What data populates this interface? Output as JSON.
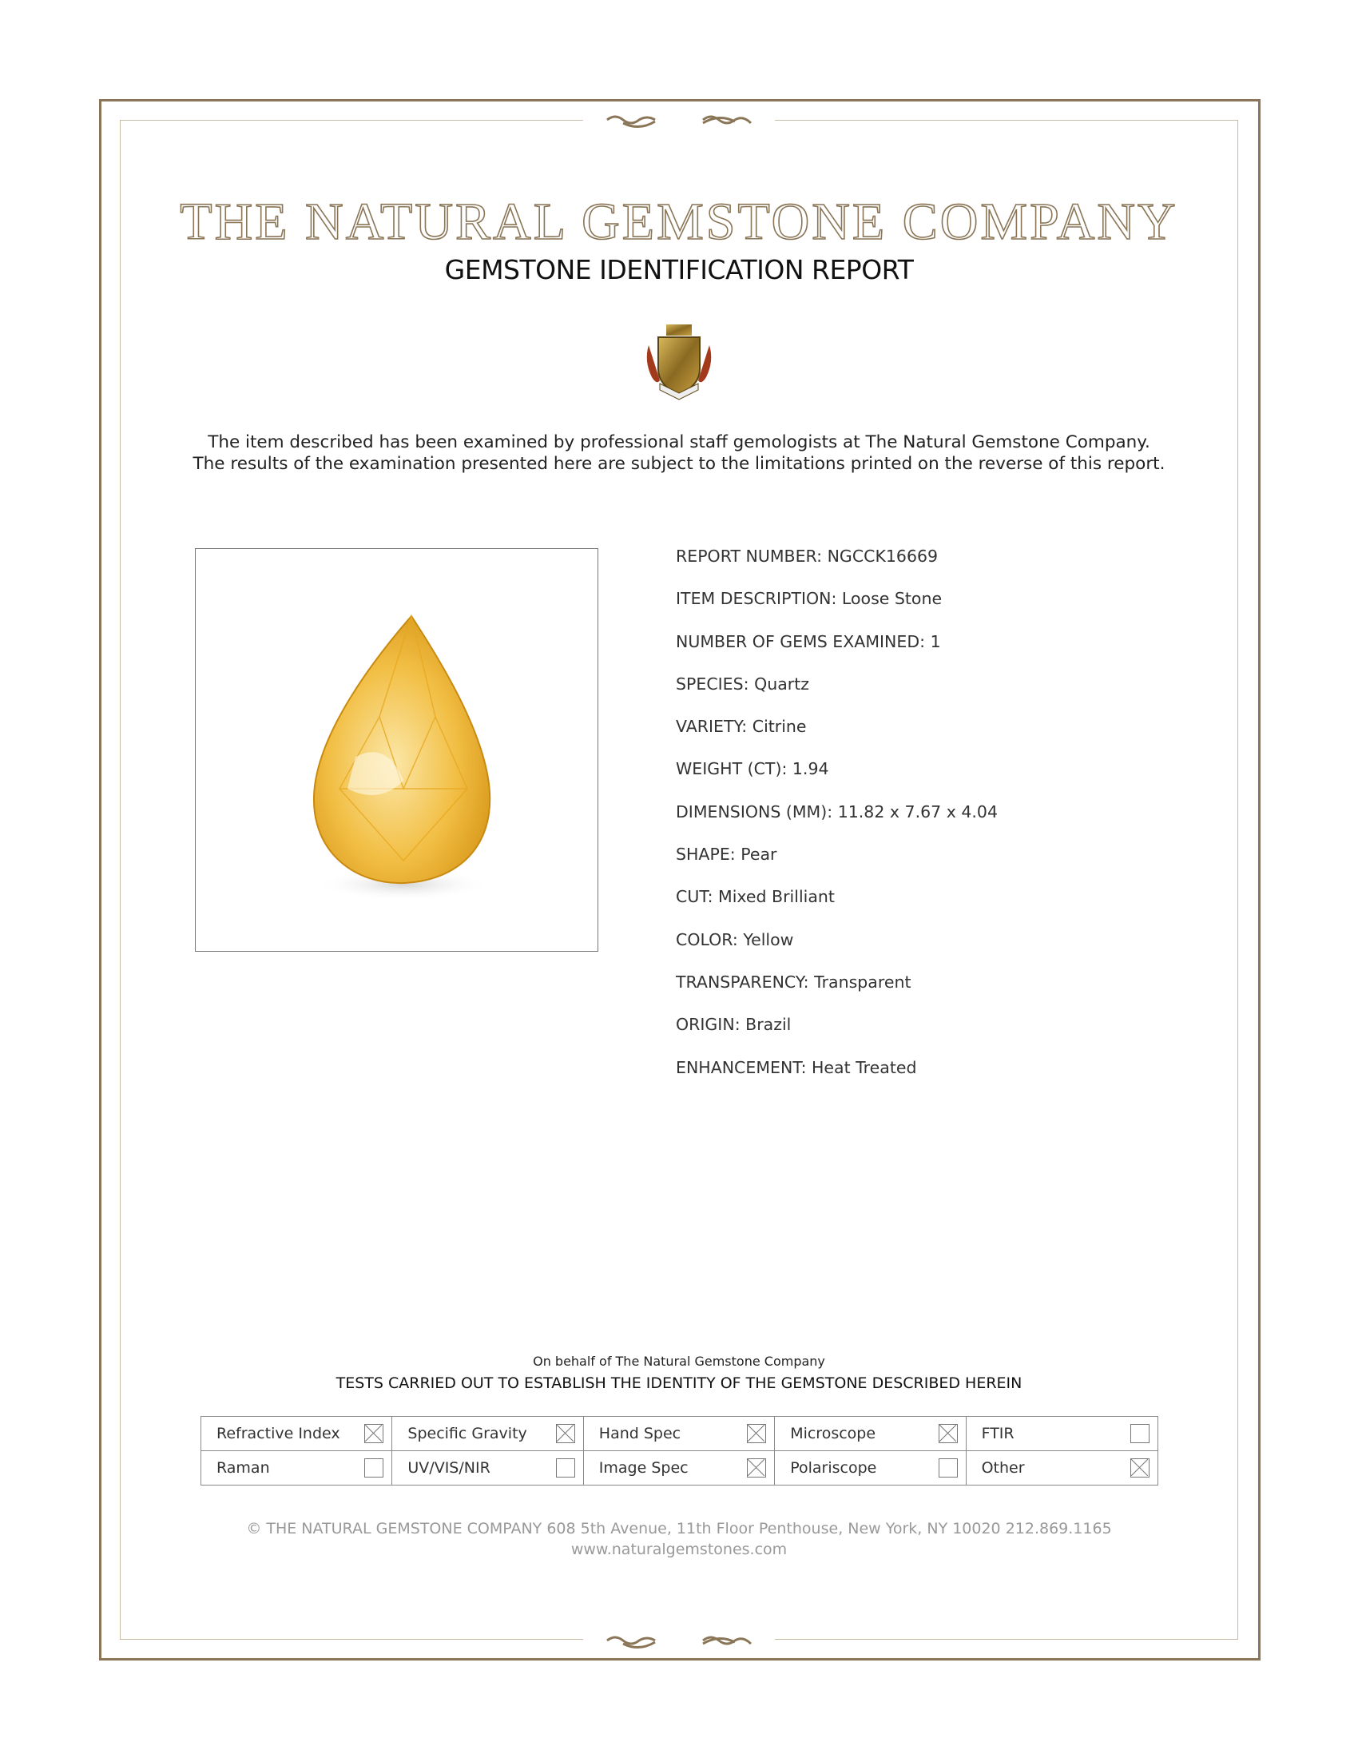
{
  "header": {
    "company_name": "THE NATURAL GEMSTONE COMPANY",
    "report_title": "GEMSTONE IDENTIFICATION REPORT"
  },
  "intro": {
    "line1": "The item described has been examined by professional staff gemologists at The Natural Gemstone Company.",
    "line2": "The results of the examination presented here are subject to the limitations printed on the reverse of this report."
  },
  "details": [
    {
      "label": "REPORT NUMBER:",
      "value": "NGCCK16669"
    },
    {
      "label": "ITEM DESCRIPTION:",
      "value": "Loose Stone"
    },
    {
      "label": "NUMBER OF GEMS EXAMINED:",
      "value": "1"
    },
    {
      "label": "SPECIES:",
      "value": "Quartz"
    },
    {
      "label": "VARIETY:",
      "value": "Citrine"
    },
    {
      "label": "WEIGHT (CT):",
      "value": "1.94"
    },
    {
      "label": "DIMENSIONS (MM):",
      "value": "11.82 x 7.67 x 4.04"
    },
    {
      "label": "SHAPE:",
      "value": "Pear"
    },
    {
      "label": "CUT:",
      "value": "Mixed Brilliant"
    },
    {
      "label": "COLOR:",
      "value": "Yellow"
    },
    {
      "label": "TRANSPARENCY:",
      "value": "Transparent"
    },
    {
      "label": "ORIGIN:",
      "value": "Brazil"
    },
    {
      "label": "ENHANCEMENT:",
      "value": "Heat Treated"
    }
  ],
  "tests": {
    "behalf": "On behalf of The Natural Gemstone Company",
    "heading": "TESTS CARRIED OUT TO ESTABLISH THE IDENTITY OF THE GEMSTONE DESCRIBED HEREIN",
    "items": [
      {
        "label": "Refractive Index",
        "checked": true
      },
      {
        "label": "Specific Gravity",
        "checked": true
      },
      {
        "label": "Hand Spec",
        "checked": true
      },
      {
        "label": "Microscope",
        "checked": true
      },
      {
        "label": "FTIR",
        "checked": false
      },
      {
        "label": "Raman",
        "checked": false
      },
      {
        "label": "UV/VIS/NIR",
        "checked": false
      },
      {
        "label": "Image Spec",
        "checked": true
      },
      {
        "label": "Polariscope",
        "checked": false
      },
      {
        "label": "Other",
        "checked": true
      }
    ]
  },
  "footer": {
    "address": "© THE NATURAL GEMSTONE COMPANY  608 5th Avenue, 11th Floor Penthouse, New York, NY  10020   212.869.1165",
    "website": "www.naturalgemstones.com"
  },
  "colors": {
    "border": "#8a7657",
    "gem": "#f2b732"
  }
}
